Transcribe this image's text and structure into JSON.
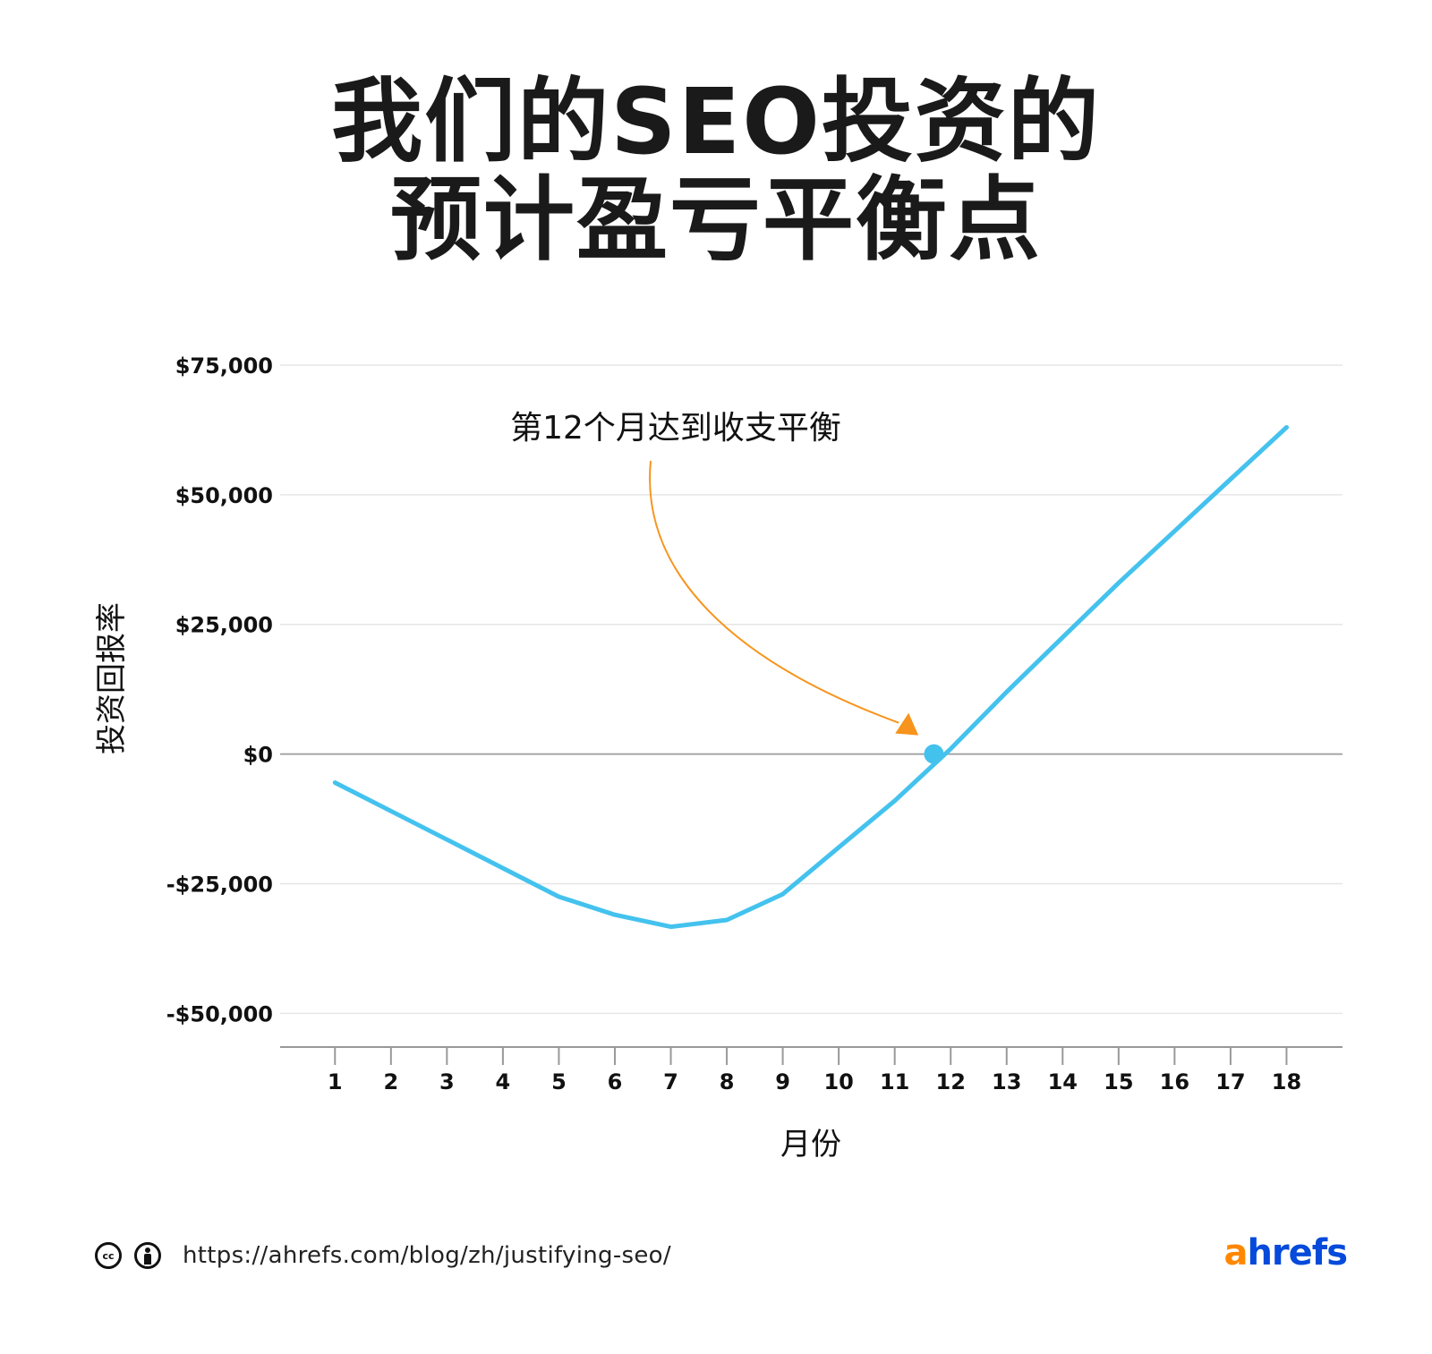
{
  "title": {
    "line1": "我们的SEO投资的",
    "line2": "预计盈亏平衡点"
  },
  "chart_data": {
    "type": "line",
    "title": "我们的SEO投资的预计盈亏平衡点",
    "xlabel": "月份",
    "ylabel": "投资回报率",
    "x": [
      1,
      2,
      3,
      4,
      5,
      6,
      7,
      8,
      9,
      10,
      11,
      12,
      13,
      14,
      15,
      16,
      17,
      18
    ],
    "series": [
      {
        "values": [
          -5500,
          -11000,
          -16500,
          -22000,
          -27500,
          -31000,
          -33300,
          -32000,
          -27000,
          -18000,
          -9000,
          1000,
          12000,
          22500,
          33000,
          43000,
          53000,
          63000
        ]
      }
    ],
    "x_ticks": [
      "1",
      "2",
      "3",
      "4",
      "5",
      "6",
      "7",
      "8",
      "9",
      "10",
      "11",
      "12",
      "13",
      "14",
      "15",
      "16",
      "17",
      "18"
    ],
    "y_ticks": [
      {
        "value": 75000,
        "label": "$75,000"
      },
      {
        "value": 50000,
        "label": "$50,000"
      },
      {
        "value": 25000,
        "label": "$25,000"
      },
      {
        "value": 0,
        "label": "$0"
      },
      {
        "value": -25000,
        "label": "-$25,000"
      },
      {
        "value": -50000,
        "label": "-$50,000"
      }
    ],
    "ylim": [
      -56500,
      75000
    ],
    "xlim": [
      0.02,
      19.0
    ],
    "grid": true,
    "break_even": {
      "x": 11.7,
      "y": 0
    },
    "annotation": {
      "text": "第12个月达到收支平衡",
      "target_x": 11.2,
      "target_y": 5000
    },
    "colors": {
      "line": "#44c2ee",
      "annotation": "#f7941d",
      "grid": "#e6e6e6",
      "zero_line": "#9b9b9b",
      "axis": "#999999"
    }
  },
  "footer": {
    "url": "https://ahrefs.com/blog/zh/justifying-seo/",
    "cc_label": "cc"
  },
  "logo": {
    "a": "a",
    "rest": "hrefs",
    "colors": {
      "a": "#ff8800",
      "rest": "#054ada"
    }
  }
}
